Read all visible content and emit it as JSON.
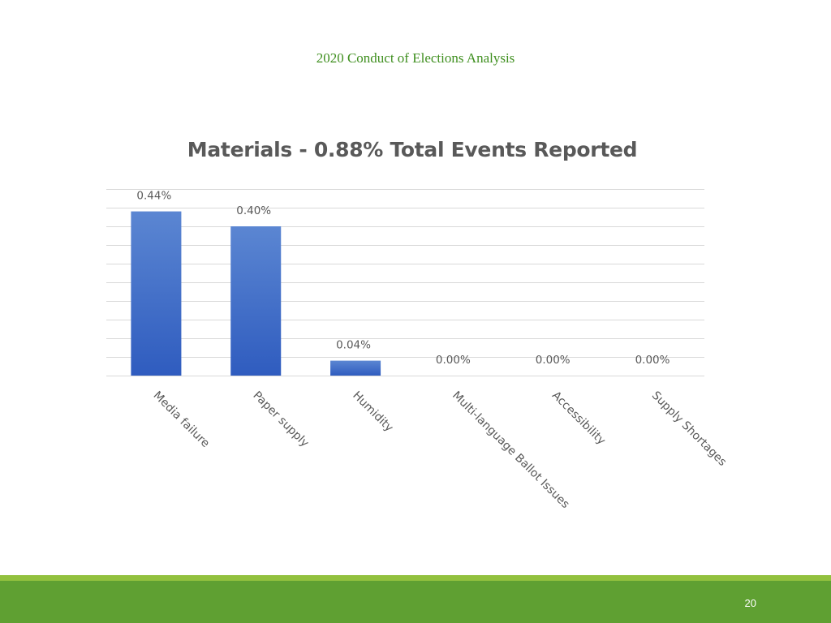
{
  "header": {
    "title": "2020 Conduct of Elections Analysis"
  },
  "colors": {
    "bar_top": "#5b86d2",
    "bar_bottom": "#2f5cbf",
    "header_text": "#3f8f1f",
    "footer": "#5fa032",
    "footer_accent": "#92c13e"
  },
  "chart_data": {
    "type": "bar",
    "title": "Materials - 0.88% Total Events Reported",
    "categories": [
      "Media failure",
      "Paper supply",
      "Humidity",
      "Multi-language Ballot Issues",
      "Accessibility",
      "Supply Shortages"
    ],
    "values": [
      0.44,
      0.4,
      0.04,
      0.0,
      0.0,
      0.0
    ],
    "data_labels": [
      "0.44%",
      "0.40%",
      "0.04%",
      "0.00%",
      "0.00%",
      "0.00%"
    ],
    "ylim": [
      0,
      0.5
    ],
    "grid": true,
    "legend": "none"
  },
  "footer": {
    "page_number": "20"
  }
}
